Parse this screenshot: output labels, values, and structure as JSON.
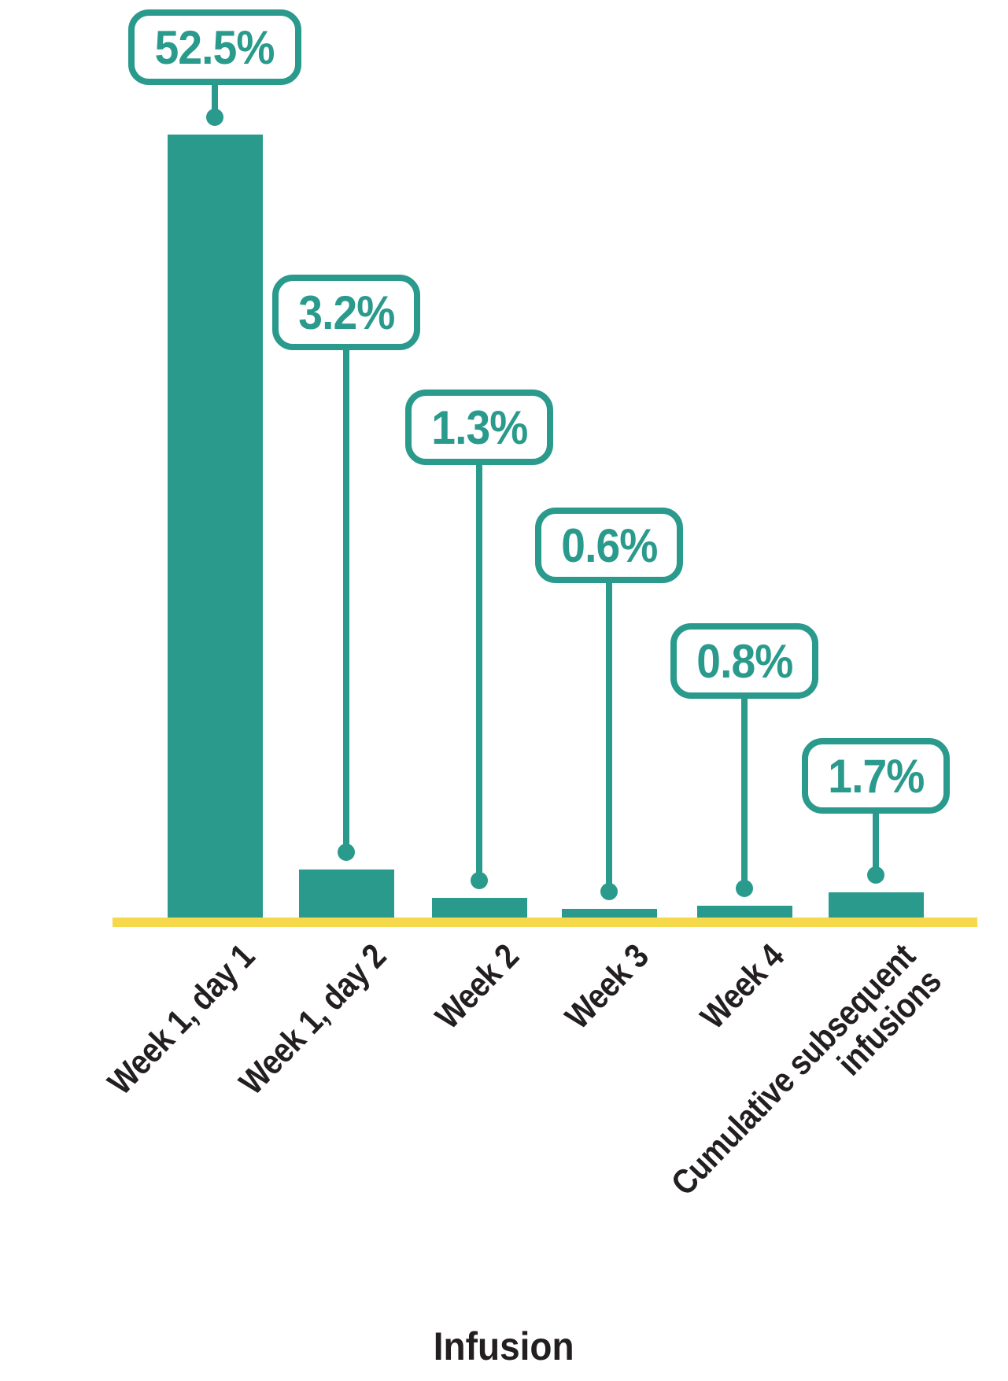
{
  "chart_data": {
    "type": "bar",
    "title": "",
    "xlabel": "Infusion",
    "ylabel": "",
    "categories": [
      "Week 1, day 1",
      "Week 1, day 2",
      "Week 2",
      "Week 3",
      "Week 4",
      "Cumulative subsequent infusions"
    ],
    "values": [
      52.5,
      3.2,
      1.3,
      0.6,
      0.8,
      1.7
    ],
    "data_labels": [
      "52.5%",
      "3.2%",
      "1.3%",
      "0.6%",
      "0.8%",
      "1.7%"
    ],
    "ylim": [
      0,
      55
    ],
    "grid": false,
    "legend": false,
    "colors": {
      "bar": "#2a9a8c",
      "axis_line": "#f5d94b",
      "callout_border": "#2a9a8c",
      "callout_text": "#2a9a8c",
      "callout_fill": "#ffffff",
      "tick_label_text": "#231f20",
      "background": "#ffffff"
    }
  }
}
